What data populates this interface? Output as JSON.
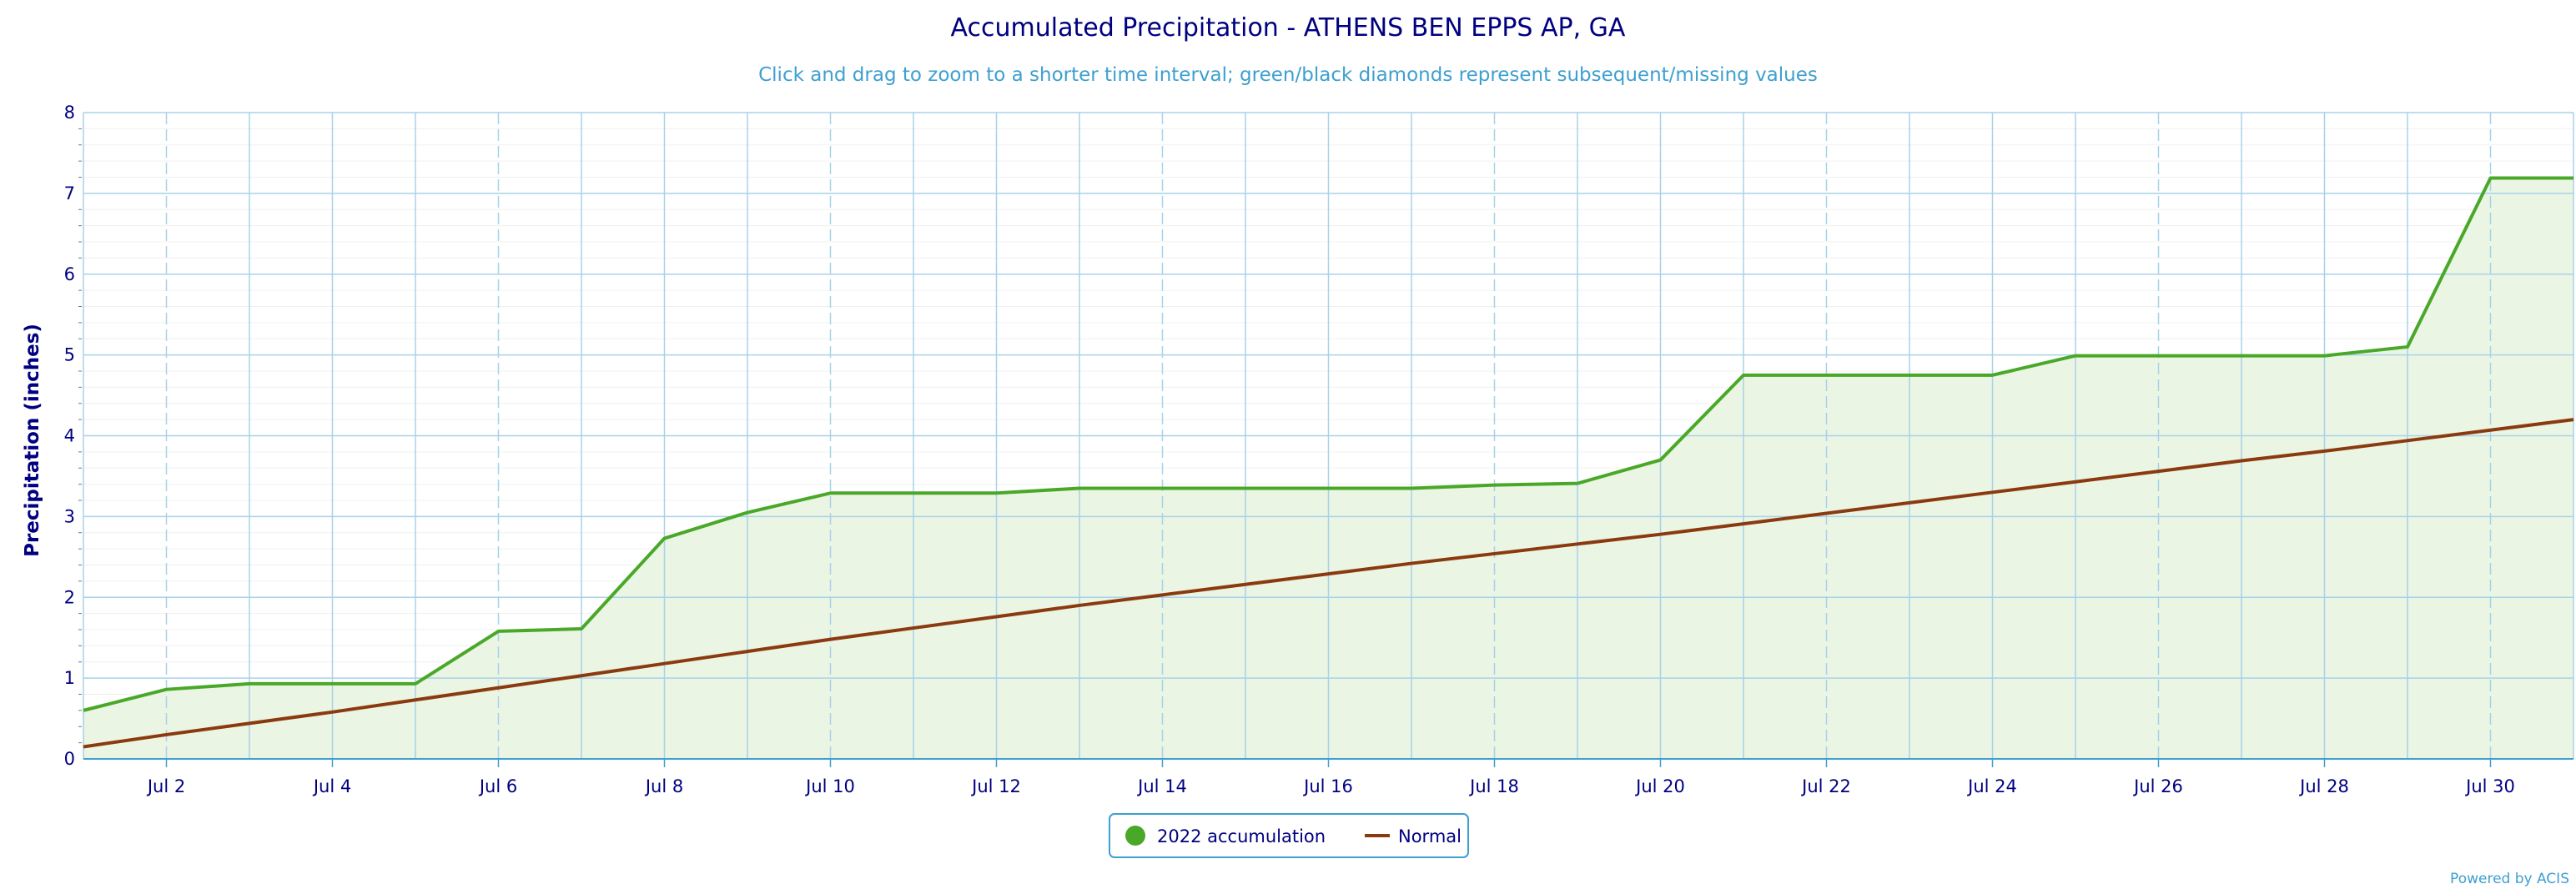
{
  "chart_data": {
    "type": "line",
    "title": "Accumulated Precipitation - ATHENS BEN EPPS AP, GA",
    "subtitle": "Click and drag to zoom to a shorter time interval; green/black diamonds represent subsequent/missing values",
    "ylabel": "Precipitation (inches)",
    "xlabel": "",
    "ylim": [
      0,
      8
    ],
    "yticks": [
      "0",
      "1",
      "2",
      "3",
      "4",
      "5",
      "6",
      "7",
      "8"
    ],
    "xlim": [
      1,
      31
    ],
    "xticks": [
      {
        "day": 2,
        "label": "Jul 2"
      },
      {
        "day": 4,
        "label": "Jul 4"
      },
      {
        "day": 6,
        "label": "Jul 6"
      },
      {
        "day": 8,
        "label": "Jul 8"
      },
      {
        "day": 10,
        "label": "Jul 10"
      },
      {
        "day": 12,
        "label": "Jul 12"
      },
      {
        "day": 14,
        "label": "Jul 14"
      },
      {
        "day": 16,
        "label": "Jul 16"
      },
      {
        "day": 18,
        "label": "Jul 18"
      },
      {
        "day": 20,
        "label": "Jul 20"
      },
      {
        "day": 22,
        "label": "Jul 22"
      },
      {
        "day": 24,
        "label": "Jul 24"
      },
      {
        "day": 26,
        "label": "Jul 26"
      },
      {
        "day": 28,
        "label": "Jul 28"
      },
      {
        "day": 30,
        "label": "Jul 30"
      }
    ],
    "grid": true,
    "legend_position": "bottom-center",
    "series": [
      {
        "name": "2022 accumulation",
        "color": "#4aa829",
        "fill": "#eaf5e4",
        "x": [
          1,
          2,
          3,
          4,
          5,
          6,
          7,
          8,
          9,
          10,
          11,
          12,
          13,
          14,
          15,
          16,
          17,
          18,
          19,
          20,
          21,
          22,
          23,
          24,
          25,
          26,
          27,
          28,
          29,
          30,
          31
        ],
        "values": [
          0.6,
          0.86,
          0.93,
          0.93,
          0.93,
          1.58,
          1.61,
          2.73,
          3.05,
          3.29,
          3.29,
          3.29,
          3.35,
          3.35,
          3.35,
          3.35,
          3.35,
          3.39,
          3.41,
          3.7,
          4.75,
          4.75,
          4.75,
          4.75,
          4.99,
          4.99,
          4.99,
          4.99,
          5.1,
          7.19,
          7.19
        ]
      },
      {
        "name": "Normal",
        "color": "#8b3a0f",
        "x": [
          1,
          2,
          3,
          4,
          5,
          6,
          7,
          8,
          9,
          10,
          11,
          12,
          13,
          14,
          15,
          16,
          17,
          18,
          19,
          20,
          21,
          22,
          23,
          24,
          25,
          26,
          27,
          28,
          29,
          30,
          31
        ],
        "values": [
          0.15,
          0.3,
          0.44,
          0.58,
          0.73,
          0.88,
          1.03,
          1.18,
          1.33,
          1.48,
          1.62,
          1.76,
          1.9,
          2.03,
          2.16,
          2.29,
          2.42,
          2.54,
          2.66,
          2.78,
          2.91,
          3.04,
          3.17,
          3.3,
          3.43,
          3.56,
          3.69,
          3.81,
          3.94,
          4.07,
          4.2
        ]
      }
    ]
  },
  "credit": "Powered by ACIS"
}
